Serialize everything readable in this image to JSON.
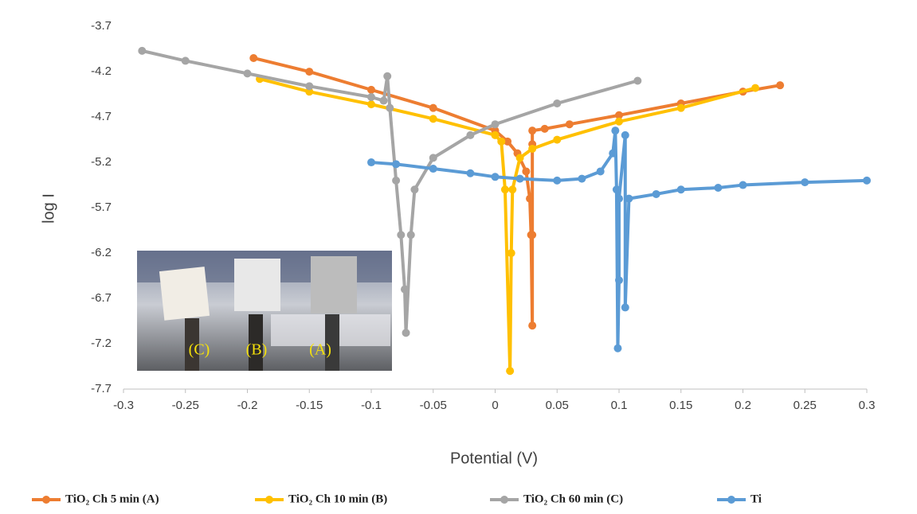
{
  "chart_data": {
    "type": "line",
    "x_label": "Potential (V)",
    "y_label": "log I",
    "xlim": [
      -0.3,
      0.3
    ],
    "ylim": [
      -7.7,
      -3.55
    ],
    "xticks": [
      -0.3,
      -0.25,
      -0.2,
      -0.15,
      -0.1,
      -0.05,
      0,
      0.05,
      0.1,
      0.15,
      0.2,
      0.25,
      0.3
    ],
    "yticks": [
      -3.7,
      -4.2,
      -4.7,
      -5.2,
      -5.7,
      -6.2,
      -6.7,
      -7.2,
      -7.7
    ],
    "grid": false,
    "legend": "bottom",
    "annotations": [
      "(C)",
      "(B)",
      "(A)"
    ],
    "series": [
      {
        "name": "TiO₂ Ch 5 min (A)",
        "color": "#ED7D31",
        "x": [
          -0.195,
          -0.15,
          -0.1,
          -0.05,
          0,
          0.01,
          0.018,
          0.025,
          0.028,
          0.029,
          0.03,
          0.03,
          0.03,
          0.03,
          0.04,
          0.06,
          0.1,
          0.15,
          0.2,
          0.23
        ],
        "values": [
          -4.05,
          -4.2,
          -4.4,
          -4.6,
          -4.85,
          -4.97,
          -5.1,
          -5.3,
          -5.6,
          -6.0,
          -7.0,
          -6.0,
          -5.0,
          -4.85,
          -4.83,
          -4.78,
          -4.68,
          -4.55,
          -4.42,
          -4.35
        ]
      },
      {
        "name": "TiO₂ Ch 10 min (B)",
        "color": "#FFC000",
        "x": [
          -0.19,
          -0.15,
          -0.1,
          -0.05,
          0,
          0.005,
          0.008,
          0.012,
          0.013,
          0.014,
          0.02,
          0.03,
          0.05,
          0.1,
          0.15,
          0.21
        ],
        "values": [
          -4.28,
          -4.42,
          -4.56,
          -4.72,
          -4.9,
          -4.97,
          -5.5,
          -7.5,
          -6.2,
          -5.5,
          -5.15,
          -5.05,
          -4.95,
          -4.75,
          -4.6,
          -4.38
        ]
      },
      {
        "name": "TiO₂ Ch 60 min (C)",
        "color": "#A5A5A5",
        "x": [
          -0.285,
          -0.25,
          -0.2,
          -0.15,
          -0.1,
          -0.09,
          -0.087,
          -0.085,
          -0.08,
          -0.076,
          -0.073,
          -0.072,
          -0.068,
          -0.065,
          -0.05,
          -0.02,
          0,
          0.05,
          0.115
        ],
        "values": [
          -3.97,
          -4.08,
          -4.22,
          -4.36,
          -4.48,
          -4.52,
          -4.25,
          -4.6,
          -5.4,
          -6.0,
          -6.6,
          -7.08,
          -6.0,
          -5.5,
          -5.15,
          -4.9,
          -4.78,
          -4.55,
          -4.3
        ]
      },
      {
        "name": "Ti",
        "color": "#5B9BD5",
        "x": [
          -0.1,
          -0.08,
          -0.05,
          -0.02,
          0,
          0.02,
          0.05,
          0.07,
          0.085,
          0.095,
          0.097,
          0.098,
          0.099,
          0.1,
          0.1,
          0.105,
          0.105,
          0.108,
          0.13,
          0.15,
          0.18,
          0.2,
          0.25,
          0.3
        ],
        "values": [
          -5.2,
          -5.22,
          -5.27,
          -5.32,
          -5.36,
          -5.38,
          -5.4,
          -5.38,
          -5.3,
          -5.1,
          -4.85,
          -5.5,
          -7.25,
          -6.5,
          -5.6,
          -4.9,
          -6.8,
          -5.6,
          -5.55,
          -5.5,
          -5.48,
          -5.45,
          -5.42,
          -5.4
        ]
      }
    ]
  }
}
